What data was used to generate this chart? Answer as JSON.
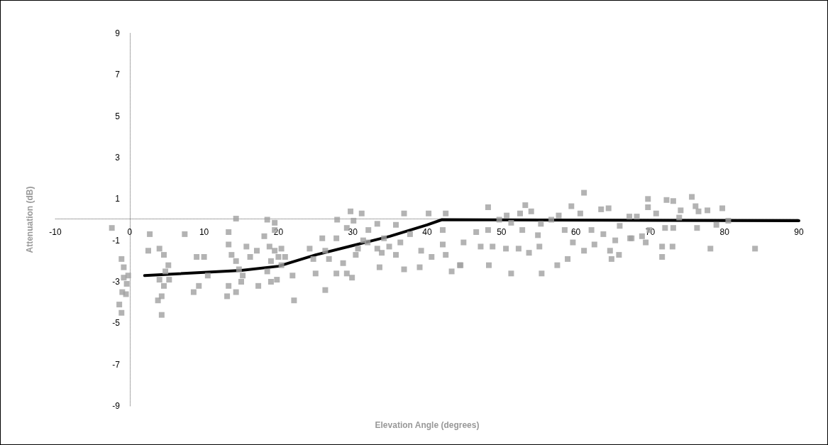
{
  "chart_data": {
    "type": "scatter",
    "xlabel": "Elevation Angle (degrees)",
    "ylabel": "Attenuation (dB)",
    "xlim": [
      -10,
      90
    ],
    "xticks": [
      -10,
      0,
      10,
      20,
      30,
      40,
      50,
      60,
      70,
      80,
      90
    ],
    "ylim": [
      -9,
      9
    ],
    "yticks": [
      -9,
      -7,
      -5,
      -3,
      -1,
      1,
      3,
      5,
      7,
      9
    ],
    "marker": "square",
    "series": [
      {
        "color": "#a0a0a0",
        "x": [
          -2.4,
          -1.1,
          -0.8,
          -0.2,
          -0.4,
          -1,
          -1.4,
          -1.1,
          -0.5,
          -0.8,
          2.7,
          2.5,
          4,
          4.6,
          5.2,
          4.8,
          4,
          4.6,
          4.3,
          3.8,
          4.3,
          5.3,
          7.4,
          9,
          10,
          10.5,
          8.6,
          9.3,
          13.3,
          14.3,
          13.3,
          13.7,
          14.3,
          14.7,
          15.2,
          15,
          14.3,
          13.3,
          13.1,
          16.2,
          15.7,
          17.3,
          18.1,
          17.1,
          18.5,
          19.5,
          19.5,
          18.8,
          19.5,
          20,
          19,
          18.5,
          19,
          19.8,
          20.4,
          20.4,
          20.9,
          24.2,
          25.9,
          26.3,
          25,
          26.3,
          22.1,
          21.9,
          27.9,
          27.8,
          29.2,
          29.7,
          31.2,
          30.1,
          27.8,
          29.2,
          29.9,
          28.7,
          30.4,
          32,
          33.3,
          32.1,
          33.6,
          33.9,
          35.8,
          36.9,
          36.4,
          35.8,
          36.9,
          39,
          39.2,
          40.2,
          42.5,
          42.1,
          42.1,
          42.5,
          40.6,
          37.7,
          34.2,
          34.9,
          43.3,
          44.4,
          31.4,
          30.7,
          33.3,
          26.8,
          24.7,
          48.2,
          44.9,
          46.6,
          44.5,
          48.3,
          47.2,
          48.2,
          49.7,
          50.7,
          51.3,
          52.5,
          53.2,
          54,
          52.8,
          52.3,
          53.7,
          50.6,
          48.8,
          51.3,
          55.4,
          55.1,
          54.9,
          55.3,
          57.5,
          58.9,
          57.7,
          56.7,
          59.4,
          61.1,
          60.6,
          58.5,
          59.6,
          61.1,
          62.1,
          62.5,
          63.4,
          64.4,
          63.7,
          64.6,
          64.8,
          65.8,
          65.3,
          65.9,
          67.2,
          67.3,
          68.2,
          69.7,
          69.7,
          70.8,
          67.5,
          68.9,
          69.9,
          69.4,
          71.6,
          73,
          71.6,
          72.2,
          73.1,
          74.1,
          73.9,
          72,
          73.1,
          75.6,
          76.1,
          76.5,
          76.3,
          77.7,
          79.7,
          78.9,
          80.5,
          78.1,
          84.1
        ],
        "values": [
          -0.4,
          -1.9,
          -2.3,
          -2.7,
          -3.1,
          -3.5,
          -4.1,
          -4.5,
          -3.6,
          -2.8,
          -0.7,
          -1.5,
          -1.4,
          -1.7,
          -2.2,
          -2.5,
          -2.9,
          -3.2,
          -3.7,
          -3.9,
          -4.6,
          -2.9,
          -0.7,
          -1.8,
          -1.8,
          -2.7,
          -3.5,
          -3.2,
          -0.6,
          0.05,
          -1.2,
          -1.7,
          -2,
          -2.4,
          -2.7,
          -3,
          -3.5,
          -3.2,
          -3.7,
          -1.8,
          -1.3,
          -3.2,
          -0.8,
          -1.5,
          0,
          -0.15,
          -0.5,
          -1.3,
          -1.5,
          -1.8,
          -2,
          -2.5,
          -3,
          -2.9,
          -2.2,
          -1.4,
          -1.8,
          -1.4,
          -0.9,
          -1.5,
          -2.6,
          -3.4,
          -3.9,
          -2.7,
          0,
          -0.9,
          -0.4,
          0.4,
          0.3,
          -0.05,
          -2.6,
          -2.6,
          -2.8,
          -2.1,
          -1.7,
          -1.1,
          -0.2,
          -0.5,
          -2.3,
          -1.6,
          -0.25,
          0.3,
          -1.1,
          -1.7,
          -2.4,
          -2.3,
          -1.5,
          0.3,
          0.3,
          -0.5,
          -1.2,
          -1.7,
          -1.8,
          -0.7,
          -0.9,
          -1.3,
          -2.5,
          -2.2,
          -1,
          -1.4,
          -1.4,
          -1.9,
          -1.9,
          0.6,
          -1.1,
          -0.6,
          -2.2,
          -2.2,
          -1.3,
          -0.5,
          0,
          0.2,
          -0.15,
          0.3,
          0.7,
          0.4,
          -0.5,
          -1.4,
          -1.6,
          -1.4,
          -1.3,
          -2.6,
          -2.6,
          -1.3,
          -0.75,
          -0.2,
          -2.2,
          -1.9,
          0.2,
          0,
          0.65,
          1.3,
          0.3,
          -0.5,
          -1.1,
          -1.5,
          -0.5,
          -1.2,
          0.5,
          0.55,
          -0.7,
          -1.5,
          -1.9,
          -1.7,
          -1,
          -0.3,
          0.15,
          -0.9,
          0.15,
          1,
          0.6,
          0.3,
          -0.9,
          -0.8,
          -0.5,
          -1.1,
          -1.3,
          -1.3,
          -1.8,
          0.95,
          0.9,
          0.45,
          0.1,
          -0.4,
          -0.4,
          1.1,
          0.65,
          0.4,
          -0.4,
          0.45,
          0.55,
          -0.25,
          -0.05,
          -1.4,
          -1.4
        ]
      },
      {
        "type": "line",
        "color": "#000000",
        "marker": "none",
        "line_style": "solid",
        "x": [
          2,
          15,
          20,
          25,
          30,
          35,
          40,
          42,
          90
        ],
        "values": [
          -2.7,
          -2.45,
          -2.25,
          -1.7,
          -1.25,
          -0.8,
          -0.25,
          0,
          -0.05
        ]
      }
    ]
  }
}
